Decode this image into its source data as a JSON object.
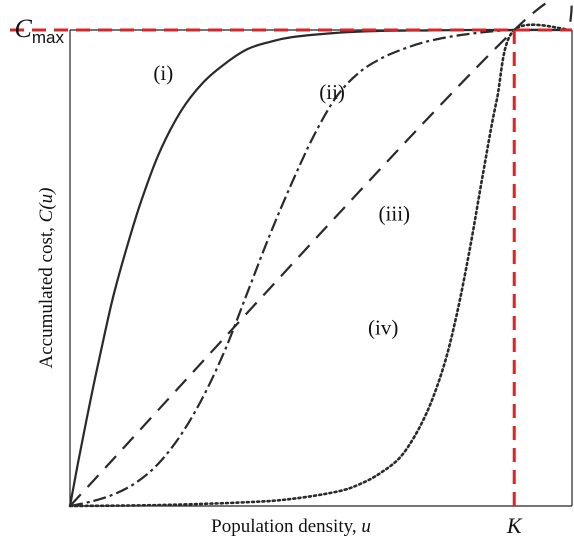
{
  "chart_data": {
    "type": "line",
    "xlabel": "Population density, u",
    "ylabel": "Accumulated cost, C(u)",
    "xlabel_parts": {
      "text": "Population density, ",
      "var": "u"
    },
    "ylabel_parts": {
      "text": "Accumulated cost, ",
      "var": "C(u)"
    },
    "xlim": [
      0,
      1.13
    ],
    "ylim": [
      0,
      1
    ],
    "grid": false,
    "x_ticks": [
      {
        "label": "K",
        "value": 1.0
      }
    ],
    "y_ticks": [
      {
        "label": "C",
        "sub": "max",
        "value": 1.0
      }
    ],
    "reference_lines": [
      {
        "orientation": "horizontal",
        "at": 1.0,
        "color": "#d62728",
        "style": "dashed"
      },
      {
        "orientation": "vertical",
        "at": 1.0,
        "color": "#d62728",
        "style": "dashed"
      }
    ],
    "series": [
      {
        "name": "(i)",
        "style": "solid",
        "label_pos": {
          "x": 0.21,
          "y": 0.895
        },
        "x": [
          0,
          0.02,
          0.05,
          0.08,
          0.1,
          0.13,
          0.16,
          0.2,
          0.25,
          0.3,
          0.35,
          0.4,
          0.45,
          0.5,
          0.6,
          0.7,
          0.8,
          0.9,
          1.0,
          1.13
        ],
        "y": [
          0,
          0.1,
          0.24,
          0.37,
          0.45,
          0.55,
          0.64,
          0.74,
          0.83,
          0.89,
          0.93,
          0.96,
          0.975,
          0.985,
          0.994,
          0.998,
          0.999,
          1.0,
          1.0,
          1.0
        ]
      },
      {
        "name": "(ii)",
        "style": "dashdot",
        "label_pos": {
          "x": 0.59,
          "y": 0.855
        },
        "x": [
          0,
          0.05,
          0.1,
          0.15,
          0.2,
          0.25,
          0.3,
          0.35,
          0.4,
          0.45,
          0.5,
          0.55,
          0.6,
          0.65,
          0.7,
          0.75,
          0.8,
          0.85,
          0.9,
          0.95,
          1.0,
          1.13
        ],
        "y": [
          0,
          0.01,
          0.025,
          0.05,
          0.09,
          0.15,
          0.23,
          0.33,
          0.45,
          0.57,
          0.68,
          0.78,
          0.86,
          0.91,
          0.94,
          0.96,
          0.975,
          0.985,
          0.992,
          0.997,
          1.0,
          1.0
        ]
      },
      {
        "name": "(iii)",
        "style": "dashed",
        "label_pos": {
          "x": 0.73,
          "y": 0.6
        },
        "x": [
          0,
          1.0,
          1.13
        ],
        "y": [
          0,
          1.0,
          1.0
        ]
      },
      {
        "name": "(iv)",
        "style": "dotted",
        "label_pos": {
          "x": 0.705,
          "y": 0.36
        },
        "x": [
          0,
          0.2,
          0.4,
          0.5,
          0.6,
          0.65,
          0.7,
          0.75,
          0.8,
          0.84,
          0.87,
          0.9,
          0.93,
          0.96,
          1.0,
          1.13
        ],
        "y": [
          0,
          0.002,
          0.008,
          0.015,
          0.03,
          0.045,
          0.07,
          0.11,
          0.19,
          0.29,
          0.4,
          0.54,
          0.7,
          0.85,
          1.0,
          1.0
        ]
      }
    ]
  }
}
